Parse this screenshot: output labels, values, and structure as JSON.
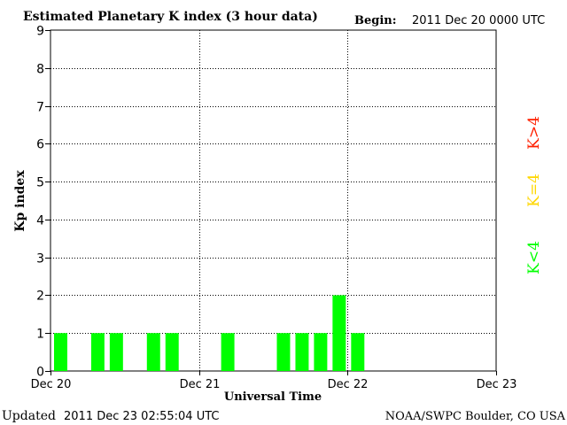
{
  "header": {
    "title": "Estimated Planetary K index (3 hour data)",
    "begin_label": "Begin:",
    "begin_value": "2011 Dec 20 0000 UTC"
  },
  "footer": {
    "updated_label": "Updated",
    "updated_value": "2011 Dec 23 02:55:04 UTC",
    "credit": "NOAA/SWPC Boulder, CO USA"
  },
  "legend": {
    "items": [
      {
        "label": "K<4",
        "color": "#00ff00"
      },
      {
        "label": "K=4",
        "color": "#ffd700"
      },
      {
        "label": "K>4",
        "color": "#ff2000"
      }
    ]
  },
  "colors": {
    "bar": "#00ff00",
    "axis": "#000000",
    "grid": "#000000"
  },
  "chart_data": {
    "type": "bar",
    "title": "Estimated Planetary K index (3 hour data)",
    "xlabel": "Universal Time",
    "ylabel": "Kp index",
    "ylim": [
      0,
      9
    ],
    "yticks": [
      0,
      1,
      2,
      3,
      4,
      5,
      6,
      7,
      8,
      9
    ],
    "xticks": [
      "Dec 20",
      "Dec 21",
      "Dec 22",
      "Dec 23"
    ],
    "bin_hours": 3,
    "bins_per_day": 8,
    "grid": "dotted",
    "values": [
      1,
      0,
      1,
      1,
      0,
      1,
      1,
      0,
      0,
      1,
      0,
      0,
      1,
      1,
      1,
      2,
      1,
      0,
      0,
      0,
      0,
      0,
      0,
      0
    ]
  }
}
